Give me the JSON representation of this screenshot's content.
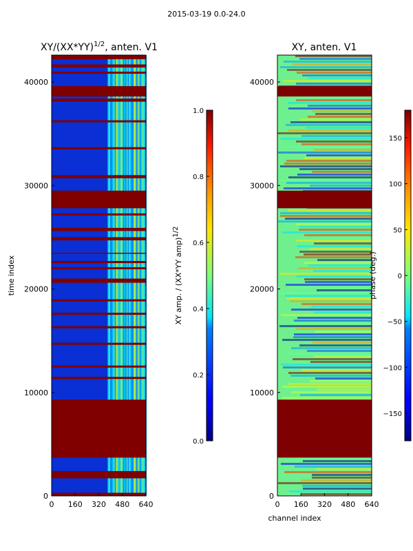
{
  "suptitle": "2015-03-19 0.0-24.0",
  "chart_data": [
    {
      "type": "heatmap",
      "title_main": "XY/(XX*YY)",
      "title_sup": "1/2",
      "title_tail": ", anten. V1",
      "xlabel": "",
      "ylabel": "time index",
      "xlim": [
        0,
        640
      ],
      "ylim": [
        0,
        42600
      ],
      "xticks": [
        0,
        160,
        320,
        480,
        640
      ],
      "yticks": [
        0,
        10000,
        20000,
        30000,
        40000
      ],
      "colorbar": {
        "label_main": "XY amp. / (XX*YY amp)",
        "label_sup": "1/2",
        "range": [
          0.0,
          1.0
        ],
        "ticks": [
          "0.0",
          "0.2",
          "0.4",
          "0.6",
          "0.8",
          "1.0"
        ],
        "colormap": "jet"
      },
      "saturated_bands": [
        [
          0,
          300
        ],
        [
          1700,
          2400
        ],
        [
          3700,
          9300
        ],
        [
          11300,
          11500
        ],
        [
          12400,
          12600
        ],
        [
          14600,
          14800
        ],
        [
          16200,
          16400
        ],
        [
          17500,
          17700
        ],
        [
          18800,
          19000
        ],
        [
          20600,
          21000
        ],
        [
          21900,
          22100
        ],
        [
          22500,
          22700
        ],
        [
          23400,
          23500
        ],
        [
          24700,
          25000
        ],
        [
          25600,
          25900
        ],
        [
          27100,
          27300
        ],
        [
          27800,
          29500
        ],
        [
          30700,
          31000
        ],
        [
          33500,
          33700
        ],
        [
          36100,
          36300
        ],
        [
          38100,
          38400
        ],
        [
          38600,
          39600
        ],
        [
          40800,
          41000
        ],
        [
          41400,
          41700
        ],
        [
          42200,
          42600
        ]
      ]
    },
    {
      "type": "heatmap",
      "title": "XY, anten. V1",
      "xlabel": "channel index",
      "ylabel": "",
      "xlim": [
        0,
        640
      ],
      "ylim": [
        0,
        42600
      ],
      "xticks": [
        0,
        160,
        320,
        480,
        640
      ],
      "yticks": [
        0,
        10000,
        20000,
        30000,
        40000
      ],
      "colorbar": {
        "label": "phase (deg.)",
        "range": [
          -180,
          180
        ],
        "ticks": [
          "150",
          "100",
          "50",
          "0",
          "−50",
          "−100",
          "−150"
        ],
        "colormap": "jet"
      },
      "saturated_bands": [
        [
          3700,
          9300
        ],
        [
          27800,
          29500
        ],
        [
          38600,
          39600
        ]
      ]
    }
  ]
}
